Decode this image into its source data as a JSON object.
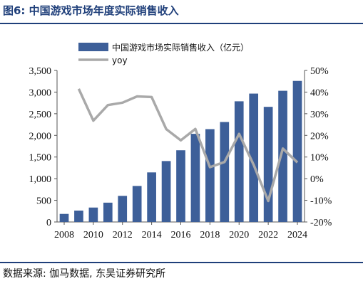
{
  "figure": {
    "title": "图6:  中国游戏市场年度实际销售收入",
    "source": "数据来源:  伽马数据,  东吴证券研究所"
  },
  "chart_data": {
    "type": "bar",
    "title": "中国游戏市场年度实际销售收入",
    "x": [
      2008,
      2009,
      2010,
      2011,
      2012,
      2013,
      2014,
      2015,
      2016,
      2017,
      2018,
      2019,
      2020,
      2021,
      2022,
      2023,
      2024
    ],
    "x_ticks": [
      "2008",
      "2010",
      "2012",
      "2014",
      "2016",
      "2018",
      "2020",
      "2022",
      "2024"
    ],
    "series": [
      {
        "name": "中国游戏市场实际销售收入（亿元）",
        "type": "bar",
        "axis": "left",
        "color": "#3d5f99",
        "values": [
          186,
          263,
          333,
          446,
          603,
          832,
          1145,
          1407,
          1656,
          2036,
          2144,
          2309,
          2787,
          2965,
          2659,
          3030,
          3258
        ]
      },
      {
        "name": "yoy",
        "type": "line",
        "axis": "right",
        "color": "#a9a9a9",
        "values": [
          null,
          41.5,
          26.8,
          34.0,
          35.1,
          38.0,
          37.7,
          22.9,
          17.7,
          23.0,
          5.3,
          7.7,
          20.7,
          6.4,
          -10.3,
          13.9,
          7.5
        ]
      }
    ],
    "y_left": {
      "min": 0,
      "max": 3500,
      "ticks": [
        "0",
        "500",
        "1,000",
        "1,500",
        "2,000",
        "2,500",
        "3,000",
        "3,500"
      ]
    },
    "y_right": {
      "min": -20,
      "max": 50,
      "ticks": [
        "-20%",
        "-10%",
        "0%",
        "10%",
        "20%",
        "30%",
        "40%",
        "50%"
      ]
    },
    "grid": false,
    "legend": "top"
  }
}
